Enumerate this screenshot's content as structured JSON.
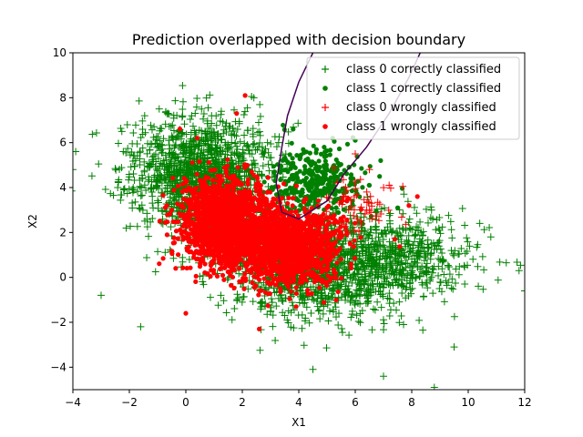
{
  "chart_data": {
    "type": "scatter",
    "title": "Prediction overlapped with decision boundary",
    "xlabel": "X1",
    "ylabel": "X2",
    "xlim": [
      -4,
      12
    ],
    "ylim": [
      -5,
      10
    ],
    "xticks": [
      -4,
      -2,
      0,
      2,
      4,
      6,
      8,
      10,
      12
    ],
    "yticks": [
      -4,
      -2,
      0,
      2,
      4,
      6,
      8,
      10
    ],
    "grid": false,
    "legend_position": "top-right",
    "series": [
      {
        "name": "class 0 correctly classified",
        "marker": "plus",
        "color": "#008000",
        "clusters": [
          {
            "center": [
              0.5,
              4.5
            ],
            "spread": [
              1.6,
              1.6
            ],
            "count": 1400
          },
          {
            "center": [
              4.5,
              0.5
            ],
            "spread": [
              2.0,
              1.5
            ],
            "count": 1200
          },
          {
            "center": [
              7.5,
              0.8
            ],
            "spread": [
              1.8,
              1.3
            ],
            "count": 500
          }
        ],
        "approx_points": [
          [
            -3.9,
            5.6
          ],
          [
            -4.0,
            4.8
          ],
          [
            11.8,
            0.3
          ],
          [
            12.0,
            -0.6
          ],
          [
            8.8,
            -4.9
          ],
          [
            -1.6,
            -2.2
          ],
          [
            4.5,
            -4.1
          ],
          [
            7.0,
            -4.4
          ],
          [
            -3.0,
            -0.8
          ],
          [
            10.8,
            1.8
          ],
          [
            9.5,
            -3.1
          ]
        ]
      },
      {
        "name": "class 1 correctly classified",
        "marker": "dot",
        "color": "#008000",
        "clusters": [
          {
            "center": [
              4.5,
              4.2
            ],
            "spread": [
              1.2,
              0.9
            ],
            "count": 350
          }
        ],
        "approx_points": [
          [
            6.9,
            5.2
          ],
          [
            6.5,
            4.1
          ],
          [
            6.0,
            6.1
          ],
          [
            5.2,
            6.2
          ],
          [
            3.8,
            6.6
          ],
          [
            7.5,
            3.1
          ],
          [
            4.9,
            5.8
          ]
        ]
      },
      {
        "name": "class 0 wrongly classified",
        "marker": "plus",
        "color": "#ff0000",
        "clusters": [
          {
            "center": [
              6.0,
              3.3
            ],
            "spread": [
              0.9,
              0.8
            ],
            "count": 60
          }
        ],
        "approx_points": [
          [
            6.5,
            4.8
          ],
          [
            7.2,
            4.1
          ],
          [
            6.0,
            5.5
          ],
          [
            6.4,
            3.0
          ],
          [
            5.6,
            3.6
          ]
        ]
      },
      {
        "name": "class 1 wrongly classified",
        "marker": "dot",
        "color": "#ff0000",
        "clusters": [
          {
            "center": [
              1.3,
              2.5
            ],
            "spread": [
              1.0,
              1.2
            ],
            "count": 1500
          },
          {
            "center": [
              3.6,
              1.4
            ],
            "spread": [
              1.2,
              1.1
            ],
            "count": 1300
          }
        ],
        "approx_points": [
          [
            1.8,
            7.3
          ],
          [
            2.1,
            8.1
          ],
          [
            0.4,
            6.2
          ],
          [
            7.9,
            3.2
          ],
          [
            8.2,
            3.6
          ],
          [
            0.0,
            -1.6
          ],
          [
            2.6,
            -2.3
          ],
          [
            7.4,
            1.7
          ]
        ]
      }
    ],
    "decision_boundary": {
      "color": "#440154",
      "points": [
        [
          5.6,
          4.6
        ],
        [
          5.0,
          3.4
        ],
        [
          4.0,
          2.6
        ],
        [
          3.4,
          2.9
        ],
        [
          3.2,
          4.2
        ],
        [
          3.4,
          5.8
        ],
        [
          3.6,
          7.2
        ],
        [
          4.0,
          8.7
        ],
        [
          4.5,
          10.0
        ]
      ],
      "points_right": [
        [
          5.6,
          4.6
        ],
        [
          6.4,
          5.8
        ],
        [
          7.2,
          7.3
        ],
        [
          7.9,
          8.9
        ],
        [
          8.3,
          10.0
        ]
      ]
    }
  }
}
